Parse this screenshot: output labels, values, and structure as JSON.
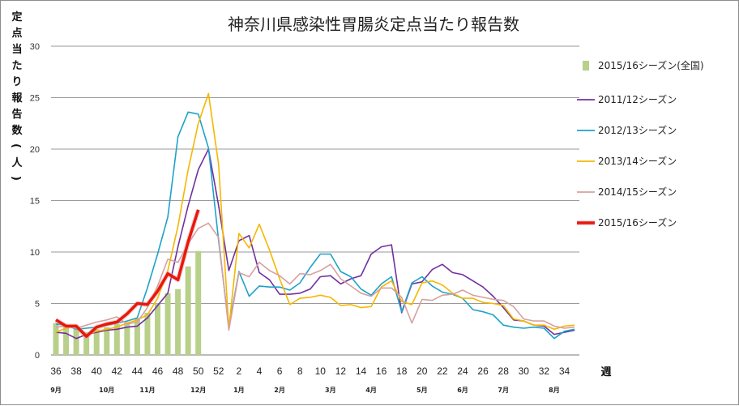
{
  "chart_data": {
    "type": "line",
    "title": "神奈川県感染性胃腸炎定点当たり報告数",
    "ylabel": "定点当たり報告数(人)",
    "xlabel": "週",
    "ylim": [
      0,
      30
    ],
    "yticks": [
      0,
      5,
      10,
      15,
      20,
      25,
      30
    ],
    "grid": true,
    "legend_position": "right",
    "weeks": [
      36,
      37,
      38,
      39,
      40,
      41,
      42,
      43,
      44,
      45,
      46,
      47,
      48,
      49,
      50,
      51,
      52,
      1,
      2,
      3,
      4,
      5,
      6,
      7,
      8,
      9,
      10,
      11,
      12,
      13,
      14,
      15,
      16,
      17,
      18,
      19,
      20,
      21,
      22,
      23,
      24,
      25,
      26,
      27,
      28,
      29,
      30,
      31,
      32,
      33,
      34,
      35
    ],
    "x_tick_labels": [
      "36",
      "38",
      "40",
      "42",
      "44",
      "46",
      "48",
      "50",
      "52",
      "2",
      "4",
      "6",
      "8",
      "10",
      "12",
      "14",
      "16",
      "18",
      "20",
      "22",
      "24",
      "26",
      "28",
      "30",
      "32",
      "34"
    ],
    "month_labels": [
      "9月",
      "10月",
      "11月",
      "12月",
      "1月",
      "2月",
      "3月",
      "4月",
      "5月",
      "6月",
      "7月",
      "8月"
    ],
    "series": [
      {
        "name": "2015/16シーズン(全国)",
        "kind": "bar",
        "color": "#b8d08a",
        "values": [
          3.1,
          2.8,
          2.6,
          2.2,
          2.5,
          2.7,
          3.0,
          3.2,
          3.6,
          4.1,
          5.0,
          6.0,
          6.4,
          8.6,
          10.1
        ]
      },
      {
        "name": "2011/12シーズン",
        "kind": "line",
        "color": "#7030a0",
        "values": [
          2.2,
          2.1,
          1.6,
          2.0,
          2.2,
          2.4,
          2.5,
          2.7,
          2.8,
          3.6,
          4.8,
          6.0,
          10.5,
          14.5,
          18.0,
          20.0,
          14.5,
          8.2,
          11.1,
          11.6,
          8.0,
          7.3,
          5.9,
          5.9,
          6.0,
          6.4,
          7.6,
          7.7,
          6.9,
          7.4,
          7.7,
          9.8,
          10.5,
          10.7,
          4.1,
          6.9,
          7.1,
          8.3,
          8.8,
          8.0,
          7.8,
          7.2,
          6.6,
          5.7,
          4.6,
          3.4,
          3.3,
          2.9,
          2.8,
          2.0,
          2.2,
          2.4
        ]
      },
      {
        "name": "2012/13シーズン",
        "kind": "line",
        "color": "#1ea2c8",
        "values": [
          3.0,
          2.9,
          2.5,
          2.6,
          2.7,
          2.9,
          3.1,
          3.3,
          3.6,
          6.5,
          9.8,
          13.4,
          21.2,
          23.6,
          23.4,
          20.1,
          11.1,
          2.7,
          8.1,
          5.7,
          6.7,
          6.6,
          6.6,
          6.3,
          7.0,
          8.5,
          9.8,
          9.8,
          8.1,
          7.6,
          6.4,
          5.8,
          6.9,
          7.6,
          4.2,
          7.0,
          7.6,
          6.7,
          6.1,
          5.9,
          5.5,
          4.4,
          4.2,
          3.9,
          2.9,
          2.7,
          2.6,
          2.7,
          2.6,
          1.6,
          2.3,
          2.5
        ]
      },
      {
        "name": "2013/14シーズン",
        "kind": "line",
        "color": "#f5b700",
        "values": [
          2.2,
          2.6,
          2.8,
          2.0,
          2.3,
          2.5,
          2.7,
          3.1,
          3.4,
          3.9,
          5.5,
          8.2,
          12.5,
          18.0,
          22.5,
          25.4,
          18.5,
          2.6,
          11.8,
          10.4,
          12.7,
          10.2,
          7.4,
          4.9,
          5.5,
          5.6,
          5.8,
          5.6,
          4.8,
          4.9,
          4.6,
          4.7,
          6.6,
          7.2,
          5.2,
          4.9,
          7.0,
          7.2,
          6.8,
          6.0,
          5.5,
          5.5,
          5.1,
          5.0,
          4.8,
          3.5,
          3.3,
          2.9,
          2.9,
          2.5,
          2.8,
          2.9
        ]
      },
      {
        "name": "2014/15シーズン",
        "kind": "line",
        "color": "#d8a0a0",
        "values": [
          2.7,
          2.8,
          2.6,
          2.9,
          3.2,
          3.4,
          3.7,
          3.0,
          3.2,
          4.6,
          6.7,
          9.3,
          9.0,
          10.8,
          12.3,
          12.8,
          11.4,
          2.4,
          8.0,
          7.6,
          9.0,
          8.2,
          7.7,
          6.9,
          7.9,
          7.8,
          8.2,
          8.8,
          7.4,
          6.7,
          6.0,
          5.7,
          6.5,
          6.5,
          5.6,
          3.1,
          5.4,
          5.3,
          5.8,
          5.9,
          6.3,
          5.8,
          5.6,
          5.4,
          5.3,
          4.7,
          3.5,
          3.3,
          3.3,
          2.8,
          2.6,
          2.7
        ]
      },
      {
        "name": "2015/16シーズン",
        "kind": "line-bold",
        "color": "#e8180c",
        "values": [
          3.4,
          2.8,
          2.8,
          1.8,
          2.7,
          3.0,
          3.2,
          4.0,
          5.0,
          4.9,
          6.2,
          7.9,
          7.3,
          11.0,
          14.1
        ]
      }
    ]
  }
}
